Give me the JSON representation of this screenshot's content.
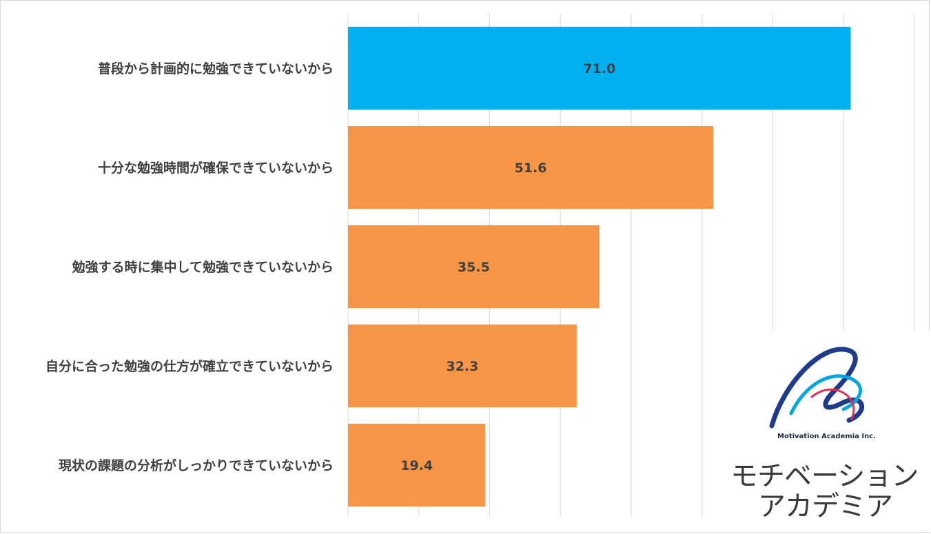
{
  "chart_data": {
    "type": "bar",
    "orientation": "horizontal",
    "categories": [
      "普段から計画的に勉強できていないから",
      "十分な勉強時間が確保できていないから",
      "勉強する時に集中して勉強できていないから",
      "自分に合った勉強の仕方が確立できていないから",
      "現状の課題の分析がしっかりできていないから"
    ],
    "values": [
      71.0,
      51.6,
      35.5,
      32.3,
      19.4
    ],
    "value_labels": [
      "71.0",
      "51.6",
      "35.5",
      "32.3",
      "19.4"
    ],
    "xlim": [
      0,
      80
    ],
    "grid": true,
    "highlight_color": "#00b0f0",
    "bar_color": "#f79646",
    "title": "",
    "xlabel": "",
    "ylabel": ""
  },
  "logo": {
    "company": "Motivation Academia Inc.",
    "name_line1": "モチベーション",
    "name_line2": "アカデミア",
    "colors": [
      "#1f3c8c",
      "#00a6e0",
      "#e0304a"
    ]
  }
}
